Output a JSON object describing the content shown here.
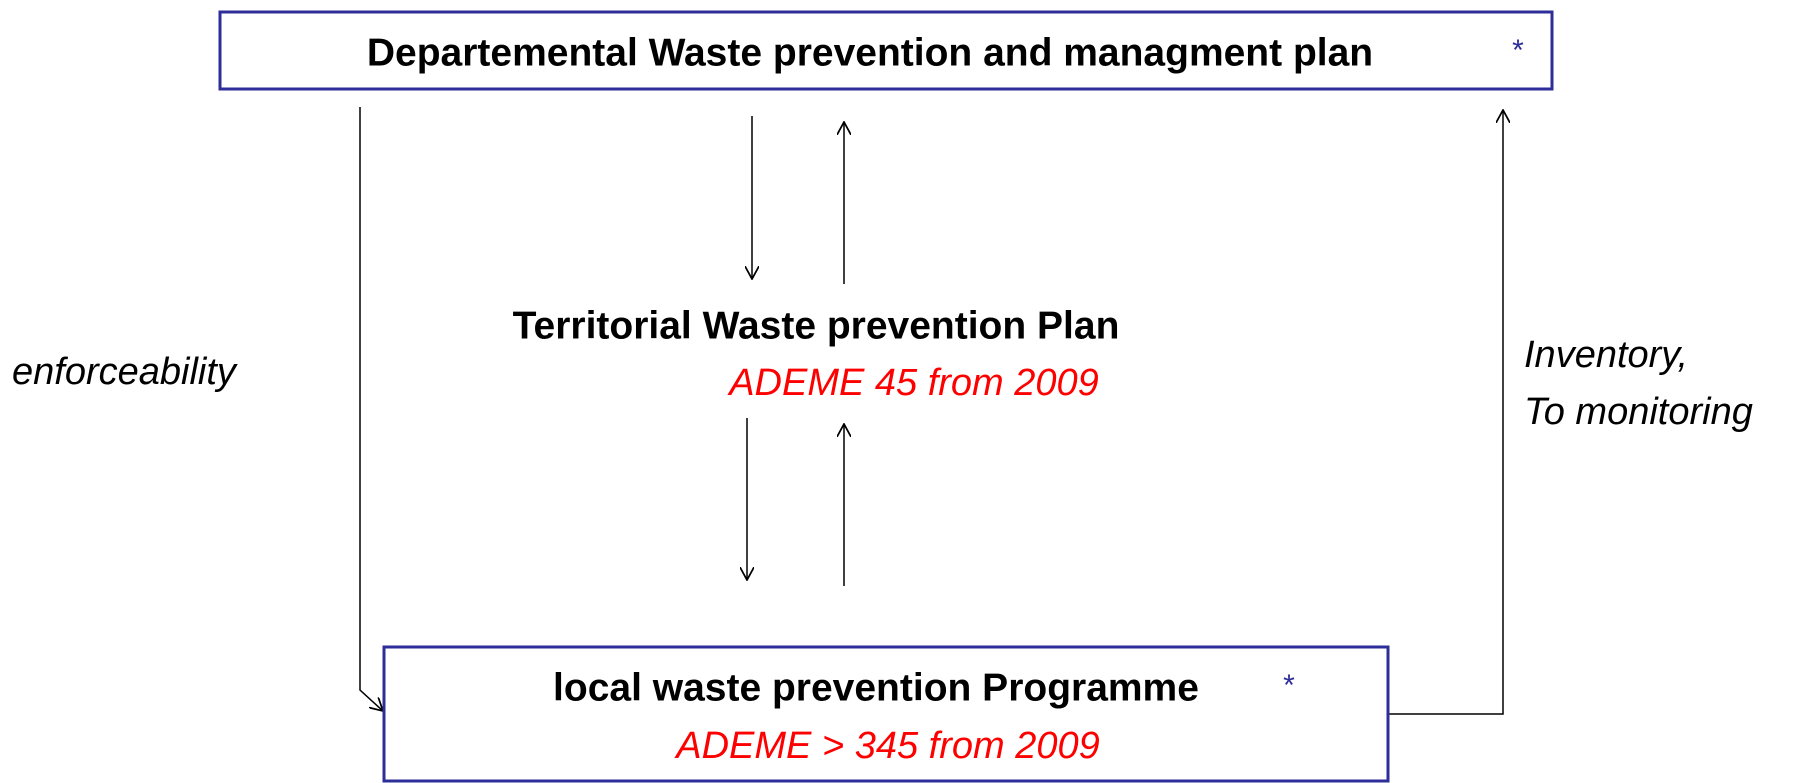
{
  "top": {
    "label": "Departemental Waste prevention and managment plan",
    "marker": "*"
  },
  "middle": {
    "label": "Territorial Waste prevention Plan",
    "note": "ADEME 45 from 2009"
  },
  "bottom": {
    "label": "local waste prevention Programme",
    "marker": "*",
    "note": "ADEME > 345 from 2009"
  },
  "annotations": {
    "left": "enforceability",
    "right": [
      "Inventory,",
      "To monitoring"
    ]
  }
}
